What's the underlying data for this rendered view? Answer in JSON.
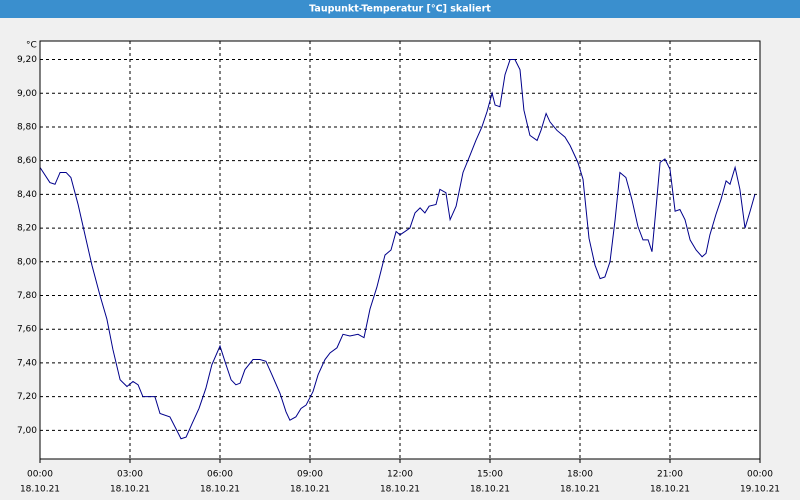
{
  "chart_data": {
    "type": "line",
    "title": "Taupunkt-Temperatur [°C] skaliert",
    "y_unit": "°C",
    "color": "#00008b",
    "grid": true,
    "xlim": [
      0,
      24
    ],
    "xticks": [
      {
        "value": 0,
        "label": "00:00"
      },
      {
        "value": 3,
        "label": "03:00"
      },
      {
        "value": 6,
        "label": "06:00"
      },
      {
        "value": 9,
        "label": "09:00"
      },
      {
        "value": 12,
        "label": "12:00"
      },
      {
        "value": 15,
        "label": "15:00"
      },
      {
        "value": 18,
        "label": "18:00"
      },
      {
        "value": 21,
        "label": "21:00"
      },
      {
        "value": 24,
        "label": "00:00"
      }
    ],
    "xtick_dates": [
      "18.10.21",
      "18.10.21",
      "18.10.21",
      "18.10.21",
      "18.10.21",
      "18.10.21",
      "18.10.21",
      "18.10.21",
      "19.10.21"
    ],
    "ylim": [
      6.83,
      9.31
    ],
    "yticks": [
      {
        "value": 7.0,
        "label": "7,00"
      },
      {
        "value": 7.2,
        "label": "7,20"
      },
      {
        "value": 7.4,
        "label": "7,40"
      },
      {
        "value": 7.6,
        "label": "7,60"
      },
      {
        "value": 7.8,
        "label": "7,80"
      },
      {
        "value": 8.0,
        "label": "8,00"
      },
      {
        "value": 8.2,
        "label": "8,20"
      },
      {
        "value": 8.4,
        "label": "8,40"
      },
      {
        "value": 8.6,
        "label": "8,60"
      },
      {
        "value": 8.8,
        "label": "8,80"
      },
      {
        "value": 9.0,
        "label": "9,00"
      },
      {
        "value": 9.2,
        "label": "9,20"
      }
    ],
    "x": [
      0,
      0.33,
      0.5,
      0.67,
      0.87,
      1.03,
      1.27,
      1.5,
      1.73,
      2,
      2.23,
      2.43,
      2.67,
      2.9,
      3.1,
      3.27,
      3.43,
      3.83,
      4,
      4.33,
      4.53,
      4.7,
      4.87,
      5.07,
      5.3,
      5.53,
      5.73,
      6,
      6.2,
      6.37,
      6.53,
      6.67,
      6.83,
      7.1,
      7.33,
      7.53,
      7.73,
      8,
      8.2,
      8.33,
      8.53,
      8.7,
      8.87,
      9.1,
      9.27,
      9.5,
      9.67,
      9.9,
      10.1,
      10.33,
      10.6,
      10.8,
      11,
      11.23,
      11.5,
      11.7,
      11.87,
      12,
      12.17,
      12.33,
      12.5,
      12.67,
      12.83,
      12.97,
      13.2,
      13.33,
      13.53,
      13.67,
      13.87,
      14.1,
      14.33,
      14.53,
      14.73,
      14.9,
      15.07,
      15.17,
      15.33,
      15.5,
      15.67,
      15.83,
      16,
      16.13,
      16.33,
      16.57,
      16.7,
      16.87,
      17,
      17.23,
      17.5,
      17.67,
      17.93,
      18.1,
      18.3,
      18.5,
      18.67,
      18.83,
      19,
      19.17,
      19.33,
      19.53,
      19.73,
      19.93,
      20.1,
      20.27,
      20.4,
      20.53,
      20.67,
      20.83,
      21,
      21.17,
      21.33,
      21.5,
      21.67,
      21.87,
      22.07,
      22.2,
      22.33,
      22.53,
      22.7,
      22.87,
      23,
      23.17,
      23.33,
      23.5,
      23.67,
      23.83
    ],
    "values": [
      8.56,
      8.47,
      8.46,
      8.53,
      8.53,
      8.5,
      8.34,
      8.16,
      7.98,
      7.8,
      7.66,
      7.48,
      7.3,
      7.26,
      7.29,
      7.27,
      7.2,
      7.2,
      7.1,
      7.08,
      7.01,
      6.95,
      6.96,
      7.04,
      7.13,
      7.25,
      7.39,
      7.5,
      7.39,
      7.3,
      7.27,
      7.28,
      7.36,
      7.42,
      7.42,
      7.41,
      7.33,
      7.22,
      7.11,
      7.06,
      7.08,
      7.13,
      7.15,
      7.23,
      7.33,
      7.42,
      7.46,
      7.49,
      7.57,
      7.56,
      7.57,
      7.55,
      7.72,
      7.85,
      8.04,
      8.07,
      8.18,
      8.16,
      8.18,
      8.2,
      8.29,
      8.32,
      8.29,
      8.33,
      8.34,
      8.43,
      8.41,
      8.25,
      8.33,
      8.53,
      8.63,
      8.72,
      8.8,
      8.89,
      9.0,
      8.93,
      8.92,
      9.11,
      9.2,
      9.2,
      9.14,
      8.9,
      8.75,
      8.72,
      8.78,
      8.88,
      8.83,
      8.78,
      8.74,
      8.69,
      8.59,
      8.49,
      8.14,
      7.98,
      7.9,
      7.91,
      8.0,
      8.25,
      8.53,
      8.5,
      8.37,
      8.21,
      8.13,
      8.13,
      8.06,
      8.31,
      8.59,
      8.61,
      8.55,
      8.3,
      8.31,
      8.25,
      8.13,
      8.07,
      8.03,
      8.05,
      8.16,
      8.28,
      8.37,
      8.48,
      8.46,
      8.56,
      8.43,
      8.2,
      8.3,
      8.4
    ]
  }
}
